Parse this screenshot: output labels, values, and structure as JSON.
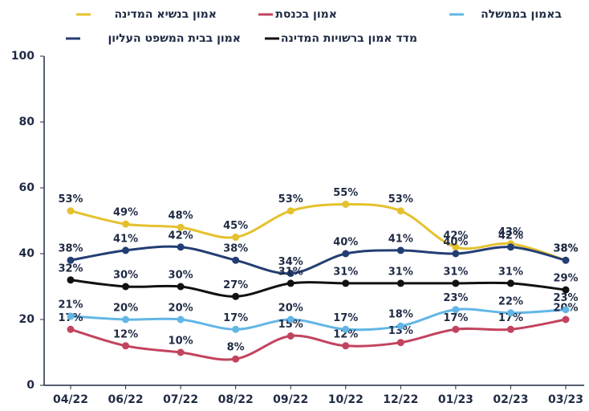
{
  "chart_data": {
    "type": "line",
    "categories": [
      "04/22",
      "06/22",
      "07/22",
      "08/22",
      "09/22",
      "10/22",
      "12/22",
      "01/23",
      "02/23",
      "03/23"
    ],
    "ylim": [
      0,
      100
    ],
    "yticks": [
      0,
      20,
      40,
      60,
      80,
      100
    ],
    "grid": false,
    "series": [
      {
        "name": "אמון בנשיא המדינה",
        "color": "#e4c12e",
        "values": [
          53,
          49,
          48,
          45,
          53,
          55,
          53,
          42,
          43,
          38
        ],
        "value_labels": [
          "53%",
          "49%",
          "48%",
          "45%",
          "53%",
          "55%",
          "53%",
          "42%",
          "43%",
          "38%"
        ]
      },
      {
        "name": "אמון בכנסת",
        "color": "#c2435e",
        "values": [
          17,
          12,
          10,
          8,
          15,
          12,
          13,
          17,
          17,
          20
        ],
        "value_labels": [
          "17%",
          "12%",
          "10%",
          "8%",
          "15%",
          "12%",
          "13%",
          "17%",
          "17%",
          "20%"
        ]
      },
      {
        "name": "באמון בממשלה",
        "color": "#62b6e6",
        "values": [
          21,
          20,
          20,
          17,
          20,
          17,
          18,
          23,
          22,
          23
        ],
        "value_labels": [
          "21%",
          "20%",
          "20%",
          "17%",
          "20%",
          "17%",
          "18%",
          "23%",
          "22%",
          "23%"
        ]
      },
      {
        "name": "אמון בבית המשפט העליון",
        "color": "#233e73",
        "values": [
          38,
          41,
          42,
          38,
          34,
          40,
          41,
          40,
          42,
          38
        ],
        "value_labels": [
          "38%",
          "41%",
          "42%",
          "38%",
          "34%",
          "40%",
          "41%",
          "40%",
          "42%",
          "38%"
        ]
      },
      {
        "name": "מדד אמון ברשויות המדינה",
        "color": "#111111",
        "values": [
          32,
          30,
          30,
          27,
          31,
          31,
          31,
          31,
          31,
          29
        ],
        "value_labels": [
          "32%",
          "30%",
          "30%",
          "27%",
          "31%",
          "31%",
          "31%",
          "31%",
          "31%",
          "29%"
        ]
      }
    ]
  }
}
